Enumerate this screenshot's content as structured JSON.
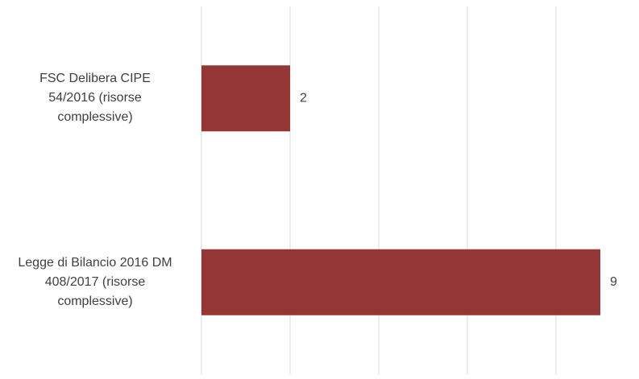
{
  "chart_data": {
    "type": "bar",
    "orientation": "horizontal",
    "categories": [
      "FSC Delibera CIPE 54/2016 (risorse complessive)",
      "Legge di Bilancio 2016 DM 408/2017 (risorse complessive)"
    ],
    "values": [
      2,
      9
    ],
    "color": "#943634",
    "xlim": [
      0,
      9.6
    ],
    "xticks": [
      0,
      2,
      4,
      6,
      8
    ],
    "grid": true
  }
}
